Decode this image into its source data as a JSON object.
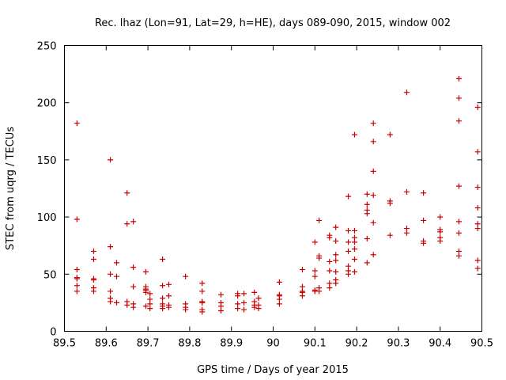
{
  "chart_data": {
    "type": "scatter",
    "title": "Rec. lhaz (Lon=91, Lat=29, h=HE), days 089-090, 2015, window 002",
    "xlabel": "GPS time / Days of year 2015",
    "ylabel": "STEC from uqrg / TECUs",
    "xlim": [
      89.5,
      90.5
    ],
    "ylim": [
      0,
      250
    ],
    "xticks": [
      "89.5",
      "89.6",
      "89.7",
      "89.8",
      "89.9",
      "90",
      "90.1",
      "90.2",
      "90.3",
      "90.4",
      "90.5"
    ],
    "yticks": [
      "0",
      "50",
      "100",
      "150",
      "200",
      "250"
    ],
    "xtick_values": [
      89.5,
      89.6,
      89.7,
      89.8,
      89.9,
      90.0,
      90.1,
      90.2,
      90.3,
      90.4,
      90.5
    ],
    "ytick_values": [
      0,
      50,
      100,
      150,
      200,
      250
    ],
    "grid": false,
    "legend": "none",
    "marker": "plus",
    "color": "#cc0000",
    "series": [
      {
        "points": [
          [
            89.53,
            182
          ],
          [
            89.53,
            98
          ],
          [
            89.53,
            54
          ],
          [
            89.53,
            47
          ],
          [
            89.53,
            46
          ],
          [
            89.53,
            40
          ],
          [
            89.53,
            35
          ],
          [
            89.57,
            70
          ],
          [
            89.57,
            63
          ],
          [
            89.57,
            46
          ],
          [
            89.57,
            45
          ],
          [
            89.57,
            38
          ],
          [
            89.57,
            35
          ],
          [
            89.61,
            150
          ],
          [
            89.61,
            74
          ],
          [
            89.61,
            50
          ],
          [
            89.61,
            35
          ],
          [
            89.61,
            29
          ],
          [
            89.61,
            26
          ],
          [
            89.625,
            60
          ],
          [
            89.625,
            48
          ],
          [
            89.625,
            25
          ],
          [
            89.65,
            121
          ],
          [
            89.65,
            94
          ],
          [
            89.65,
            26
          ],
          [
            89.65,
            23
          ],
          [
            89.665,
            96
          ],
          [
            89.665,
            56
          ],
          [
            89.665,
            39
          ],
          [
            89.665,
            24
          ],
          [
            89.665,
            21
          ],
          [
            89.695,
            52
          ],
          [
            89.695,
            39
          ],
          [
            89.695,
            37
          ],
          [
            89.695,
            36
          ],
          [
            89.695,
            34
          ],
          [
            89.695,
            22
          ],
          [
            89.705,
            33
          ],
          [
            89.705,
            28
          ],
          [
            89.705,
            24
          ],
          [
            89.705,
            20
          ],
          [
            89.735,
            63
          ],
          [
            89.735,
            40
          ],
          [
            89.735,
            29
          ],
          [
            89.735,
            24
          ],
          [
            89.735,
            22
          ],
          [
            89.735,
            20
          ],
          [
            89.75,
            41
          ],
          [
            89.75,
            31
          ],
          [
            89.75,
            23
          ],
          [
            89.75,
            21
          ],
          [
            89.79,
            48
          ],
          [
            89.79,
            24
          ],
          [
            89.79,
            21
          ],
          [
            89.79,
            19
          ],
          [
            89.83,
            42
          ],
          [
            89.83,
            35
          ],
          [
            89.83,
            26
          ],
          [
            89.83,
            25
          ],
          [
            89.83,
            19
          ],
          [
            89.83,
            17
          ],
          [
            89.875,
            32
          ],
          [
            89.875,
            25
          ],
          [
            89.875,
            22
          ],
          [
            89.875,
            18
          ],
          [
            89.915,
            33
          ],
          [
            89.915,
            31
          ],
          [
            89.915,
            24
          ],
          [
            89.915,
            20
          ],
          [
            89.93,
            33
          ],
          [
            89.93,
            25
          ],
          [
            89.93,
            19
          ],
          [
            89.955,
            34
          ],
          [
            89.955,
            26
          ],
          [
            89.955,
            23
          ],
          [
            89.955,
            21
          ],
          [
            89.965,
            29
          ],
          [
            89.965,
            23
          ],
          [
            89.965,
            20
          ],
          [
            90.015,
            43
          ],
          [
            90.015,
            32
          ],
          [
            90.015,
            31
          ],
          [
            90.015,
            28
          ],
          [
            90.015,
            24
          ],
          [
            90.07,
            54
          ],
          [
            90.07,
            39
          ],
          [
            90.07,
            35
          ],
          [
            90.07,
            34
          ],
          [
            90.07,
            31
          ],
          [
            90.1,
            78
          ],
          [
            90.1,
            53
          ],
          [
            90.1,
            48
          ],
          [
            90.1,
            36
          ],
          [
            90.1,
            35
          ],
          [
            90.11,
            97
          ],
          [
            90.11,
            66
          ],
          [
            90.11,
            64
          ],
          [
            90.11,
            38
          ],
          [
            90.11,
            35
          ],
          [
            90.135,
            84
          ],
          [
            90.135,
            82
          ],
          [
            90.135,
            61
          ],
          [
            90.135,
            53
          ],
          [
            90.135,
            42
          ],
          [
            90.135,
            38
          ],
          [
            90.15,
            91
          ],
          [
            90.15,
            79
          ],
          [
            90.15,
            67
          ],
          [
            90.15,
            62
          ],
          [
            90.15,
            52
          ],
          [
            90.15,
            45
          ],
          [
            90.15,
            42
          ],
          [
            90.18,
            118
          ],
          [
            90.18,
            88
          ],
          [
            90.18,
            78
          ],
          [
            90.18,
            70
          ],
          [
            90.18,
            57
          ],
          [
            90.18,
            53
          ],
          [
            90.18,
            50
          ],
          [
            90.195,
            172
          ],
          [
            90.195,
            88
          ],
          [
            90.195,
            82
          ],
          [
            90.195,
            78
          ],
          [
            90.195,
            72
          ],
          [
            90.195,
            63
          ],
          [
            90.195,
            52
          ],
          [
            90.225,
            120
          ],
          [
            90.225,
            111
          ],
          [
            90.225,
            106
          ],
          [
            90.225,
            103
          ],
          [
            90.225,
            81
          ],
          [
            90.225,
            60
          ],
          [
            90.24,
            182
          ],
          [
            90.24,
            166
          ],
          [
            90.24,
            140
          ],
          [
            90.24,
            119
          ],
          [
            90.24,
            95
          ],
          [
            90.24,
            67
          ],
          [
            90.28,
            172
          ],
          [
            90.28,
            114
          ],
          [
            90.28,
            112
          ],
          [
            90.28,
            84
          ],
          [
            90.32,
            209
          ],
          [
            90.32,
            122
          ],
          [
            90.32,
            90
          ],
          [
            90.32,
            86
          ],
          [
            90.36,
            121
          ],
          [
            90.36,
            97
          ],
          [
            90.36,
            79
          ],
          [
            90.36,
            77
          ],
          [
            90.4,
            100
          ],
          [
            90.4,
            89
          ],
          [
            90.4,
            87
          ],
          [
            90.4,
            82
          ],
          [
            90.4,
            79
          ],
          [
            90.445,
            221
          ],
          [
            90.445,
            204
          ],
          [
            90.445,
            184
          ],
          [
            90.445,
            127
          ],
          [
            90.445,
            96
          ],
          [
            90.445,
            86
          ],
          [
            90.445,
            70
          ],
          [
            90.445,
            66
          ],
          [
            90.49,
            196
          ],
          [
            90.49,
            157
          ],
          [
            90.49,
            126
          ],
          [
            90.49,
            108
          ],
          [
            90.49,
            94
          ],
          [
            90.49,
            90
          ],
          [
            90.49,
            62
          ],
          [
            90.49,
            55
          ]
        ]
      }
    ]
  }
}
